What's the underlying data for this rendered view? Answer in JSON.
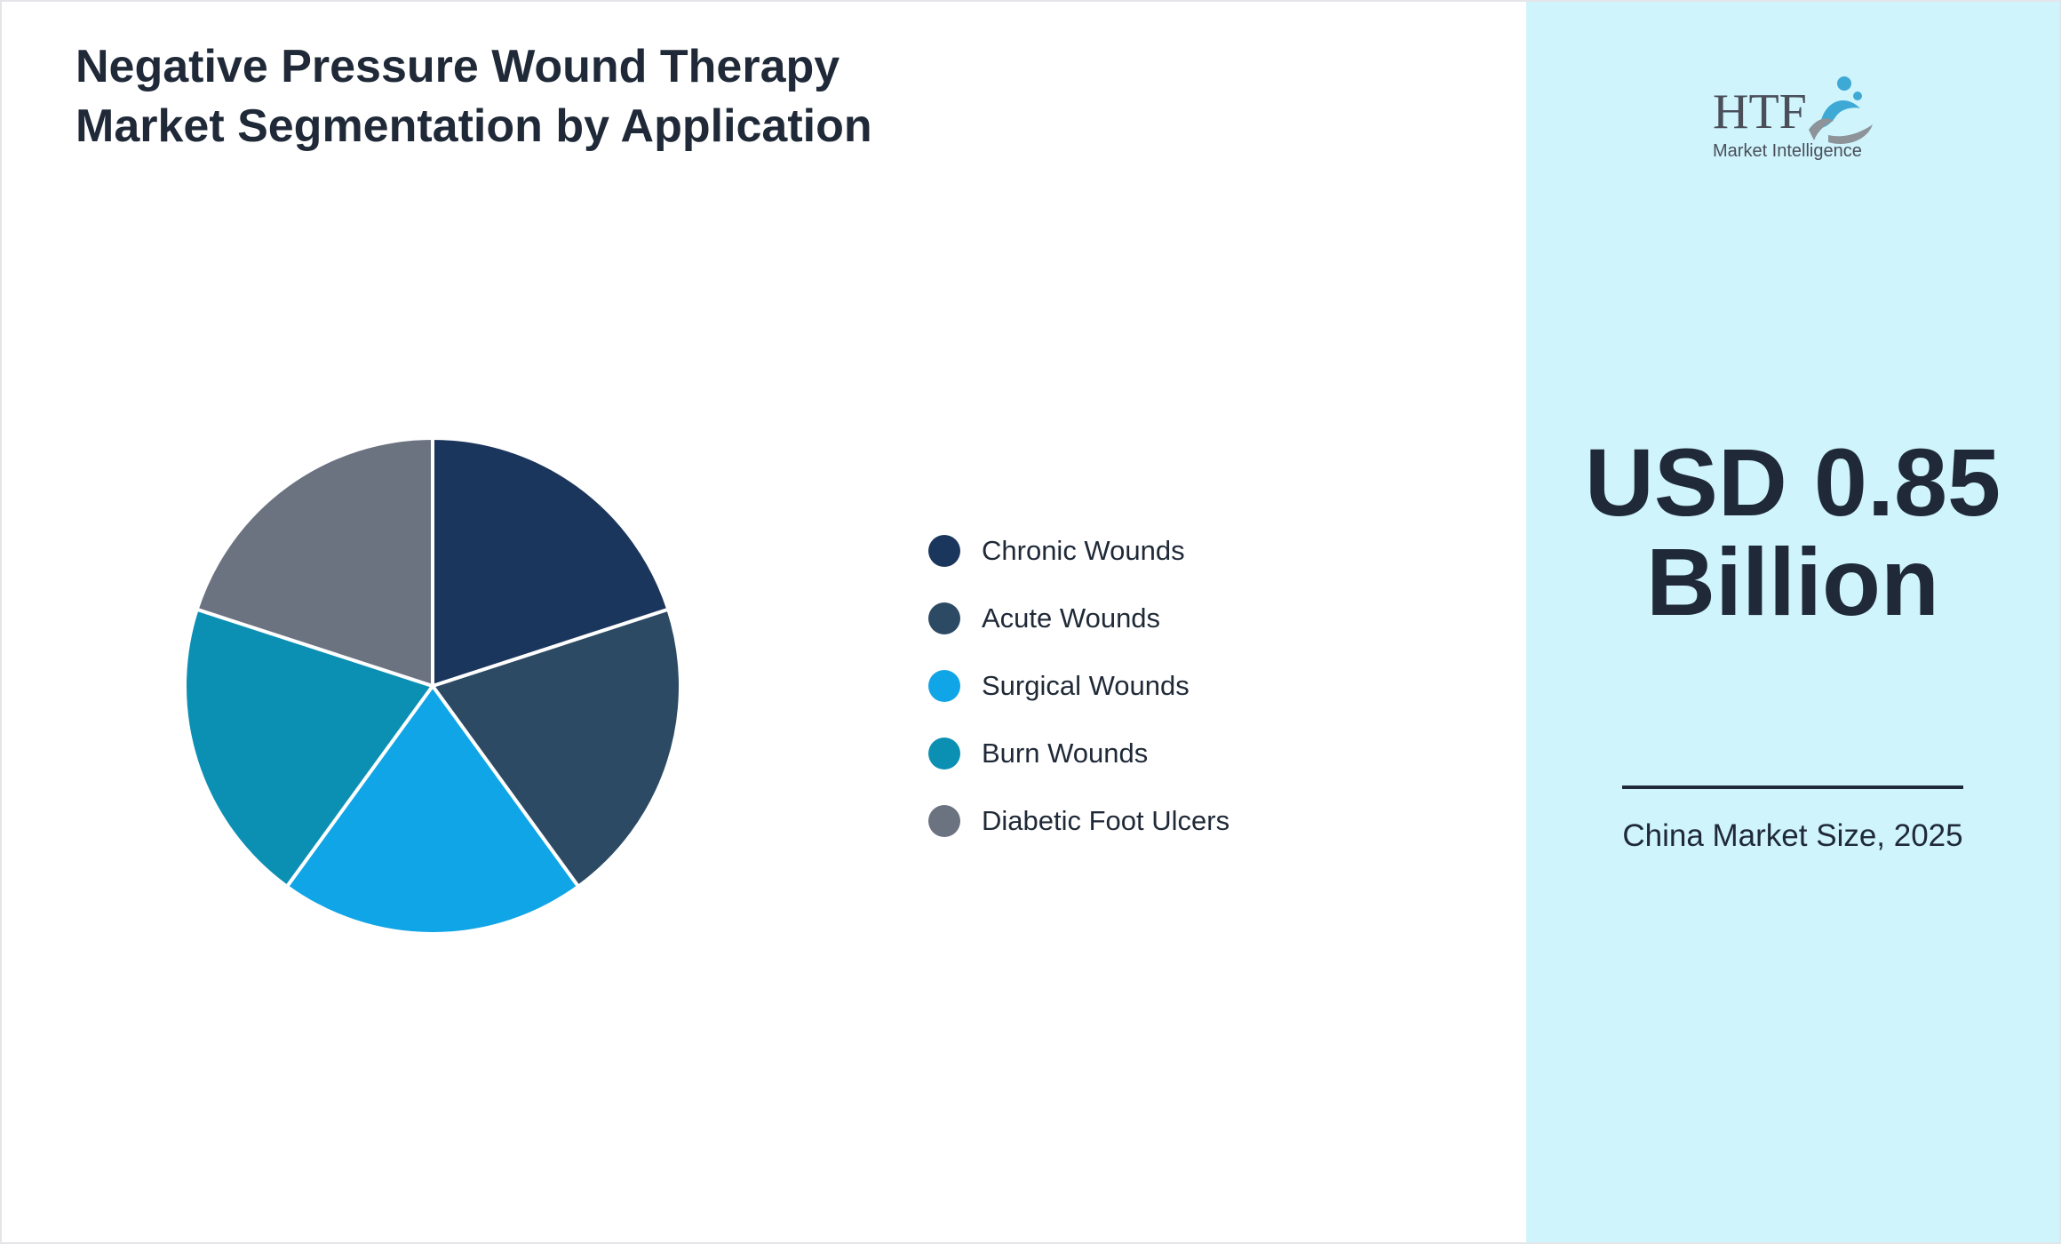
{
  "chart_data": {
    "type": "pie",
    "title": "Negative Pressure Wound Therapy Market Segmentation by Application",
    "categories": [
      "Chronic Wounds",
      "Acute Wounds",
      "Surgical Wounds",
      "Burn Wounds",
      "Diabetic Foot Ulcers"
    ],
    "values": [
      20,
      20,
      20,
      20,
      20
    ],
    "colors": [
      "#1b365d",
      "#2c4a63",
      "#10a5e6",
      "#0b90b4",
      "#6b7280"
    ],
    "legend_position": "right",
    "slice_border_color": "#ffffff",
    "start_angle": "top",
    "direction": "clockwise"
  },
  "side_panel": {
    "logo": {
      "name": "htf-market-intelligence-logo",
      "text": "HTF Market Intelligence",
      "colors": [
        "#4a4f5a",
        "#3fa9d6",
        "#8d9399"
      ]
    },
    "market_value": "USD 0.85 Billion",
    "market_caption": "China Market Size, 2025",
    "background": "#cff4fc",
    "text_color": "#1f2937"
  }
}
